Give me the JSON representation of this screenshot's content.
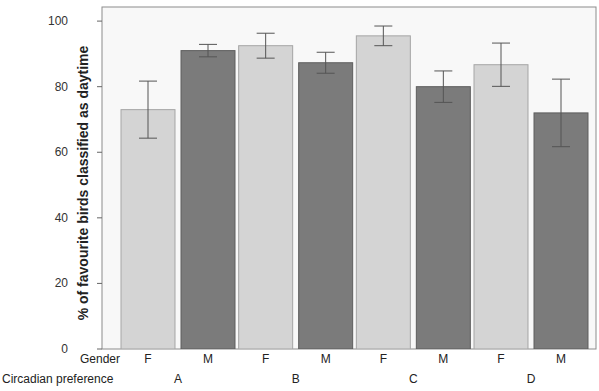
{
  "chart_data": {
    "type": "bar",
    "ylabel": "% of favourite birds classified as daytime",
    "legend_title": "Gender",
    "xlabel": "Circadian preference",
    "categories": [
      "A",
      "B",
      "C",
      "D"
    ],
    "series": [
      {
        "name": "F",
        "color": "#d4d4d4",
        "values": [
          73,
          92.5,
          95.5,
          86.7
        ],
        "error": [
          8.7,
          3.8,
          3.0,
          6.6
        ]
      },
      {
        "name": "M",
        "color": "#7b7b7b",
        "values": [
          91,
          87.3,
          80,
          72
        ],
        "error": [
          1.9,
          3.2,
          4.8,
          10.3
        ]
      }
    ],
    "ylim": [
      0,
      104.3
    ],
    "yticks": [
      0,
      20,
      40,
      60,
      80,
      100
    ],
    "grid": false
  }
}
